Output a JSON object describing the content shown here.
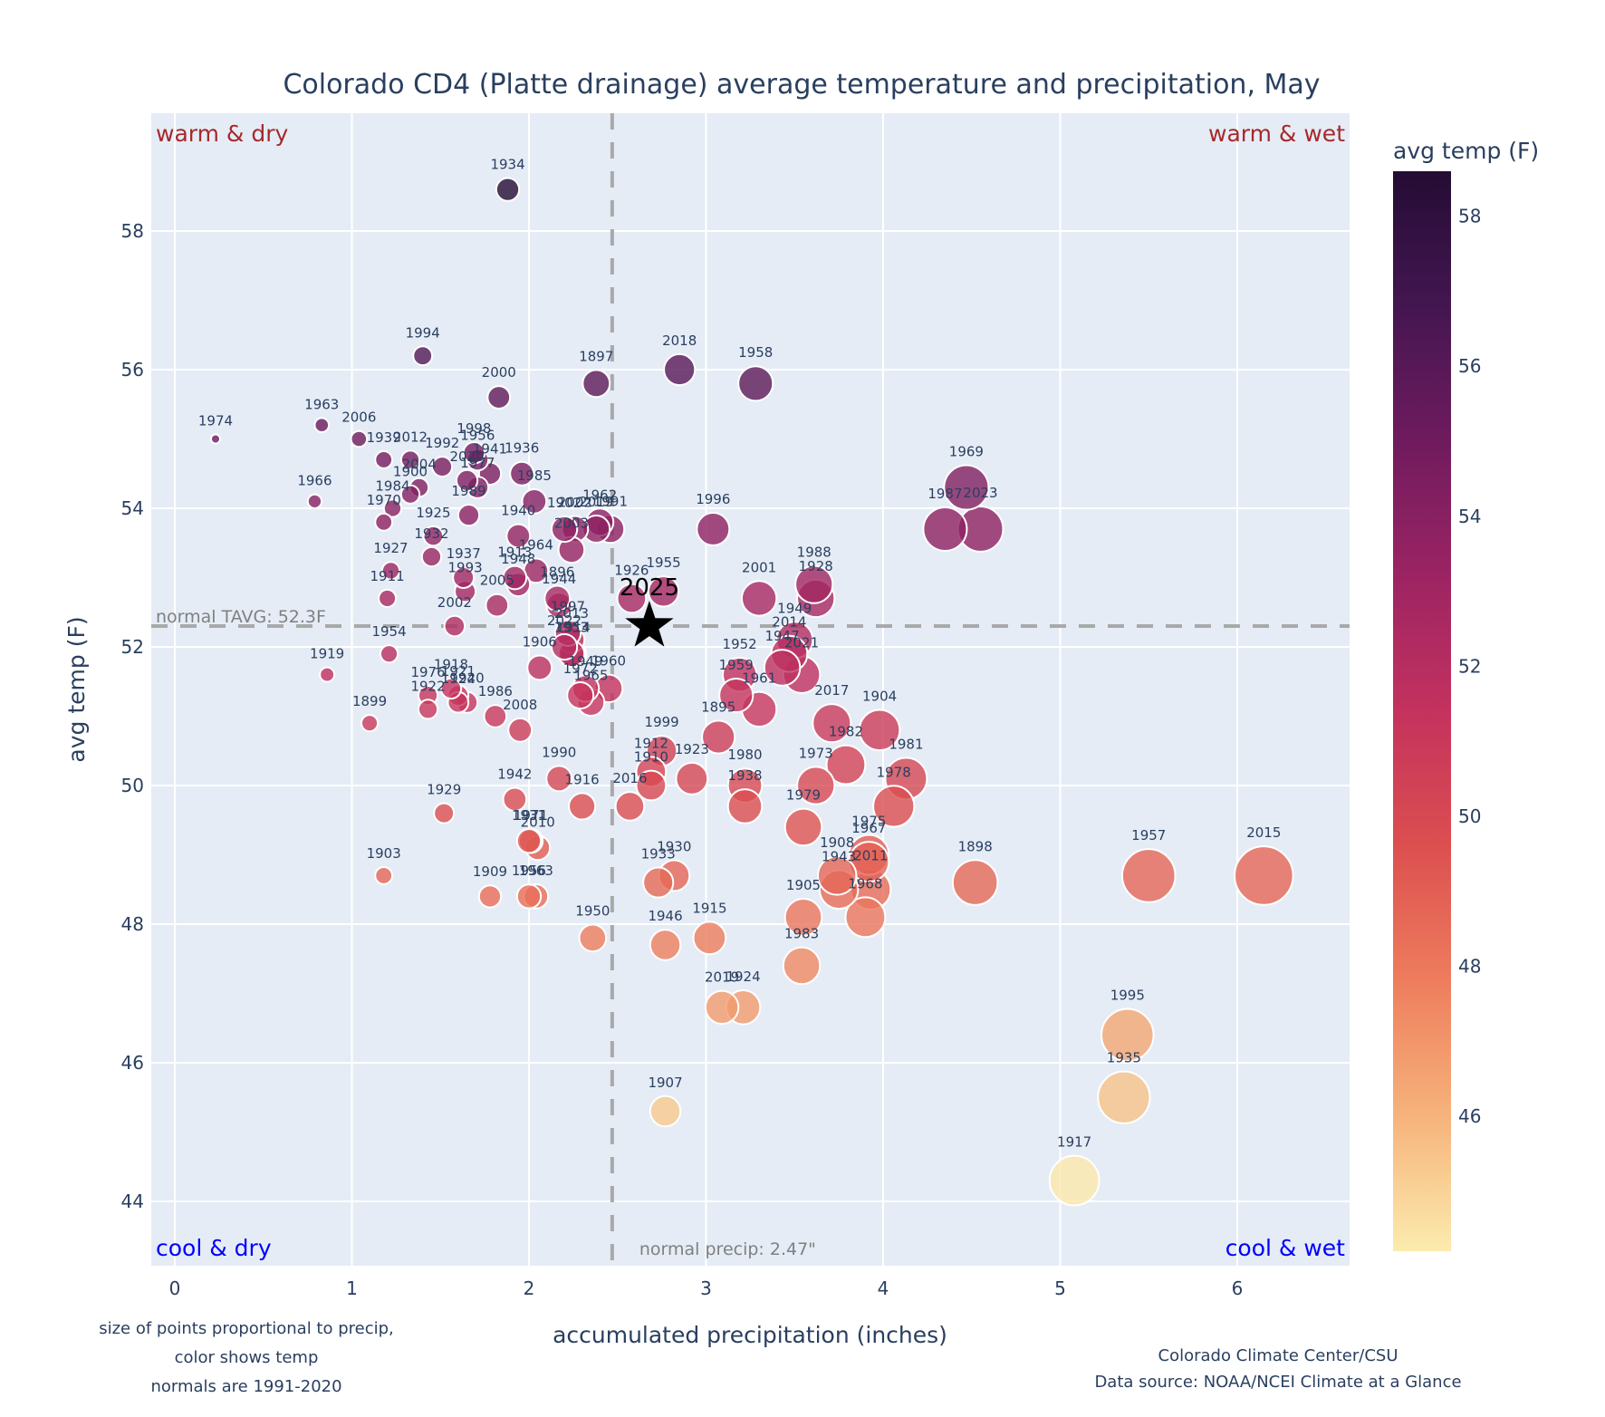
{
  "chart_data": {
    "type": "scatter",
    "title": "Colorado CD4 (Platte drainage) average temperature and precipitation, May",
    "xlabel": "accumulated precipitation (inches)",
    "ylabel": "avg temp (F)",
    "xlim": [
      -0.15,
      6.65
    ],
    "ylim": [
      43.05,
      59.7
    ],
    "x_ticks": [
      0,
      1,
      2,
      3,
      4,
      5,
      6
    ],
    "y_ticks": [
      44,
      46,
      48,
      50,
      52,
      54,
      56,
      58
    ],
    "grid": true,
    "colorbar": {
      "title": "avg temp (F)",
      "range": [
        44.2,
        58.6
      ],
      "ticks": [
        46,
        48,
        50,
        52,
        54,
        56,
        58
      ],
      "colorscale": [
        "#fcebae",
        "#f6b37b",
        "#ee7d5d",
        "#dc4f4f",
        "#c4325e",
        "#9c2463",
        "#6f1b5e",
        "#441651",
        "#240c34"
      ]
    },
    "normals": {
      "tavg": 52.3,
      "tavg_label": "normal TAVG: 52.3F",
      "precip": 2.47,
      "precip_label": "normal precip: 2.47\""
    },
    "quadrants": {
      "top_left": "warm & dry",
      "top_right": "warm & wet",
      "bottom_left": "cool & dry",
      "bottom_right": "cool & wet"
    },
    "highlight": {
      "label": "2025",
      "x": 2.68,
      "y": 52.3
    },
    "points": [
      {
        "year": "1934",
        "x": 1.88,
        "y": 58.6
      },
      {
        "year": "1994",
        "x": 1.4,
        "y": 56.2
      },
      {
        "year": "2000",
        "x": 1.83,
        "y": 55.6
      },
      {
        "year": "1897",
        "x": 2.38,
        "y": 55.8
      },
      {
        "year": "2018",
        "x": 2.85,
        "y": 56.0
      },
      {
        "year": "1958",
        "x": 3.28,
        "y": 55.8
      },
      {
        "year": "1974",
        "x": 0.23,
        "y": 55.0
      },
      {
        "year": "1963",
        "x": 0.83,
        "y": 55.2
      },
      {
        "year": "2006",
        "x": 1.04,
        "y": 55.0
      },
      {
        "year": "1939",
        "x": 1.18,
        "y": 54.7
      },
      {
        "year": "2012",
        "x": 1.33,
        "y": 54.7
      },
      {
        "year": "1992",
        "x": 1.51,
        "y": 54.6
      },
      {
        "year": "1998",
        "x": 1.69,
        "y": 54.8
      },
      {
        "year": "1956",
        "x": 1.71,
        "y": 54.7
      },
      {
        "year": "2020",
        "x": 1.65,
        "y": 54.4
      },
      {
        "year": "1941",
        "x": 1.78,
        "y": 54.5
      },
      {
        "year": "1977",
        "x": 1.71,
        "y": 54.3
      },
      {
        "year": "1936",
        "x": 1.96,
        "y": 54.5
      },
      {
        "year": "2004",
        "x": 1.38,
        "y": 54.3
      },
      {
        "year": "1900",
        "x": 1.33,
        "y": 54.2
      },
      {
        "year": "1984",
        "x": 1.23,
        "y": 54.0
      },
      {
        "year": "1970",
        "x": 1.18,
        "y": 53.8
      },
      {
        "year": "1966",
        "x": 0.79,
        "y": 54.1
      },
      {
        "year": "1989",
        "x": 1.66,
        "y": 53.9
      },
      {
        "year": "1985",
        "x": 2.03,
        "y": 54.1
      },
      {
        "year": "1925",
        "x": 1.46,
        "y": 53.6
      },
      {
        "year": "1940",
        "x": 1.94,
        "y": 53.6
      },
      {
        "year": "2002",
        "x": 2.26,
        "y": 53.7
      },
      {
        "year": "2019",
        "x": 2.38,
        "y": 53.7
      },
      {
        "year": "1962",
        "x": 2.4,
        "y": 53.8
      },
      {
        "year": "1991",
        "x": 2.46,
        "y": 53.7
      },
      {
        "year": "1902",
        "x": 2.2,
        "y": 53.7
      },
      {
        "year": "1932",
        "x": 1.45,
        "y": 53.3
      },
      {
        "year": "1927",
        "x": 1.22,
        "y": 53.1
      },
      {
        "year": "2003",
        "x": 2.24,
        "y": 53.4
      },
      {
        "year": "1964",
        "x": 2.04,
        "y": 53.1
      },
      {
        "year": "1948",
        "x": 1.94,
        "y": 52.9
      },
      {
        "year": "1937",
        "x": 1.63,
        "y": 53.0
      },
      {
        "year": "1993",
        "x": 1.64,
        "y": 52.8
      },
      {
        "year": "1913",
        "x": 1.92,
        "y": 53.0
      },
      {
        "year": "1896",
        "x": 2.16,
        "y": 52.7
      },
      {
        "year": "1944",
        "x": 2.17,
        "y": 52.6
      },
      {
        "year": "1911",
        "x": 1.2,
        "y": 52.7
      },
      {
        "year": "2005",
        "x": 1.82,
        "y": 52.6
      },
      {
        "year": "1997",
        "x": 2.22,
        "y": 52.2
      },
      {
        "year": "2013",
        "x": 2.24,
        "y": 52.1
      },
      {
        "year": "2022",
        "x": 2.2,
        "y": 52.0
      },
      {
        "year": "1953",
        "x": 2.24,
        "y": 51.9
      },
      {
        "year": "1914",
        "x": 2.25,
        "y": 51.9
      },
      {
        "year": "1926",
        "x": 2.58,
        "y": 52.7
      },
      {
        "year": "1955",
        "x": 2.76,
        "y": 52.8
      },
      {
        "year": "2002b",
        "x": 1.58,
        "y": 52.3
      },
      {
        "year": "1954",
        "x": 1.21,
        "y": 51.9
      },
      {
        "year": "1906",
        "x": 2.06,
        "y": 51.7
      },
      {
        "year": "1919",
        "x": 0.86,
        "y": 51.6
      },
      {
        "year": "1918",
        "x": 1.56,
        "y": 51.4
      },
      {
        "year": "1921",
        "x": 1.6,
        "y": 51.3
      },
      {
        "year": "1976",
        "x": 1.43,
        "y": 51.3
      },
      {
        "year": "1924",
        "x": 1.6,
        "y": 51.2
      },
      {
        "year": "1920",
        "x": 1.65,
        "y": 51.2
      },
      {
        "year": "1922",
        "x": 1.43,
        "y": 51.1
      },
      {
        "year": "1986",
        "x": 1.81,
        "y": 51.0
      },
      {
        "year": "1899",
        "x": 1.1,
        "y": 50.9
      },
      {
        "year": "2008",
        "x": 1.95,
        "y": 50.8
      },
      {
        "year": "1972",
        "x": 2.29,
        "y": 51.3
      },
      {
        "year": "1949b",
        "x": 2.32,
        "y": 51.4
      },
      {
        "year": "1960",
        "x": 2.45,
        "y": 51.4
      },
      {
        "year": "1965",
        "x": 2.35,
        "y": 51.2
      },
      {
        "year": "1996",
        "x": 3.04,
        "y": 53.7
      },
      {
        "year": "2001",
        "x": 3.3,
        "y": 52.7
      },
      {
        "year": "1988",
        "x": 3.61,
        "y": 52.9
      },
      {
        "year": "1928",
        "x": 3.62,
        "y": 52.7
      },
      {
        "year": "1949",
        "x": 3.5,
        "y": 52.1
      },
      {
        "year": "2014",
        "x": 3.47,
        "y": 51.9
      },
      {
        "year": "2021",
        "x": 3.54,
        "y": 51.6
      },
      {
        "year": "1947",
        "x": 3.43,
        "y": 51.7
      },
      {
        "year": "1952",
        "x": 3.19,
        "y": 51.6
      },
      {
        "year": "1959",
        "x": 3.17,
        "y": 51.3
      },
      {
        "year": "1961",
        "x": 3.3,
        "y": 51.1
      },
      {
        "year": "2017",
        "x": 3.71,
        "y": 50.9
      },
      {
        "year": "1904",
        "x": 3.98,
        "y": 50.8
      },
      {
        "year": "1895",
        "x": 3.07,
        "y": 50.7
      },
      {
        "year": "1982",
        "x": 3.79,
        "y": 50.3
      },
      {
        "year": "1981",
        "x": 4.13,
        "y": 50.1
      },
      {
        "year": "1999",
        "x": 2.75,
        "y": 50.5
      },
      {
        "year": "1912",
        "x": 2.69,
        "y": 50.2
      },
      {
        "year": "1910",
        "x": 2.69,
        "y": 50.0
      },
      {
        "year": "1923",
        "x": 2.92,
        "y": 50.1
      },
      {
        "year": "1980",
        "x": 3.22,
        "y": 50.0
      },
      {
        "year": "1938",
        "x": 3.22,
        "y": 49.7
      },
      {
        "year": "1973",
        "x": 3.62,
        "y": 50.0
      },
      {
        "year": "1979",
        "x": 3.55,
        "y": 49.4
      },
      {
        "year": "1978",
        "x": 4.06,
        "y": 49.7
      },
      {
        "year": "1990",
        "x": 2.17,
        "y": 50.1
      },
      {
        "year": "1916",
        "x": 2.3,
        "y": 49.7
      },
      {
        "year": "2016",
        "x": 2.57,
        "y": 49.7
      },
      {
        "year": "1942",
        "x": 1.92,
        "y": 49.8
      },
      {
        "year": "1929",
        "x": 1.52,
        "y": 49.6
      },
      {
        "year": "1931",
        "x": 2.0,
        "y": 49.2
      },
      {
        "year": "2010",
        "x": 2.05,
        "y": 49.1
      },
      {
        "year": "1971",
        "x": 2.01,
        "y": 49.2
      },
      {
        "year": "1975",
        "x": 3.92,
        "y": 49.0
      },
      {
        "year": "1908",
        "x": 3.74,
        "y": 48.7
      },
      {
        "year": "1943",
        "x": 3.75,
        "y": 48.5
      },
      {
        "year": "1967",
        "x": 3.92,
        "y": 48.9
      },
      {
        "year": "2011",
        "x": 3.93,
        "y": 48.5
      },
      {
        "year": "1905",
        "x": 3.55,
        "y": 48.1
      },
      {
        "year": "1968",
        "x": 3.9,
        "y": 48.1
      },
      {
        "year": "1898",
        "x": 4.52,
        "y": 48.6
      },
      {
        "year": "1957",
        "x": 5.5,
        "y": 48.7
      },
      {
        "year": "2015",
        "x": 6.15,
        "y": 48.7
      },
      {
        "year": "1903",
        "x": 1.18,
        "y": 48.7
      },
      {
        "year": "1933",
        "x": 2.73,
        "y": 48.6
      },
      {
        "year": "1930",
        "x": 2.82,
        "y": 48.7
      },
      {
        "year": "1909",
        "x": 1.78,
        "y": 48.4
      },
      {
        "year": "1956b",
        "x": 2.0,
        "y": 48.4
      },
      {
        "year": "1963b",
        "x": 2.04,
        "y": 48.4
      },
      {
        "year": "1950",
        "x": 2.36,
        "y": 47.8
      },
      {
        "year": "1946",
        "x": 2.77,
        "y": 47.7
      },
      {
        "year": "1915",
        "x": 3.02,
        "y": 47.8
      },
      {
        "year": "1983",
        "x": 3.54,
        "y": 47.4
      },
      {
        "year": "2019b",
        "x": 3.09,
        "y": 46.8
      },
      {
        "year": "1924b",
        "x": 3.21,
        "y": 46.8
      },
      {
        "year": "1995",
        "x": 5.38,
        "y": 46.4
      },
      {
        "year": "1935",
        "x": 5.36,
        "y": 45.5
      },
      {
        "year": "1907",
        "x": 2.77,
        "y": 45.3
      },
      {
        "year": "1917",
        "x": 5.08,
        "y": 44.3
      },
      {
        "year": "1987",
        "x": 4.35,
        "y": 53.7
      },
      {
        "year": "1969",
        "x": 4.47,
        "y": 54.3
      },
      {
        "year": "2023",
        "x": 4.55,
        "y": 53.7
      }
    ],
    "notes_left": [
      "size of points proportional to precip,",
      "color shows temp",
      "normals are 1991-2020"
    ],
    "notes_right": [
      "Colorado Climate Center/CSU",
      "Data source: NOAA/NCEI Climate at a Glance"
    ]
  }
}
